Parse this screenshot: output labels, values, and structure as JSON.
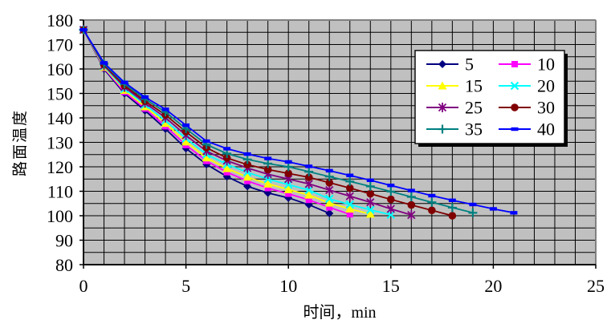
{
  "chart_data": {
    "type": "line",
    "title": "",
    "xlabel": "时间，min",
    "ylabel": "路面温度",
    "xlim": [
      0,
      25
    ],
    "ylim": [
      80,
      180
    ],
    "x_ticks": [
      0,
      5,
      10,
      15,
      20,
      25
    ],
    "y_ticks": [
      80,
      90,
      100,
      110,
      120,
      130,
      140,
      150,
      160,
      170,
      180
    ],
    "grid": {
      "x_step": 1,
      "y_step": 5,
      "color": "#000000",
      "on": true
    },
    "plot_bg": "#C0C0C0",
    "plot_border_color": "#808080",
    "axis_color": "#000000",
    "legend_position": "top-right-inside",
    "legend_columns": 2,
    "x_start": 0,
    "x_step": 1,
    "x_unit": "min",
    "series": [
      {
        "name": "5",
        "color": "#000080",
        "marker": "diamond",
        "values": [
          176,
          160,
          150,
          143,
          135.5,
          127.5,
          121,
          116,
          112,
          109.3,
          107.3,
          104.5,
          101
        ]
      },
      {
        "name": "10",
        "color": "#FF00FF",
        "marker": "square",
        "values": [
          176,
          160.4,
          150.6,
          143.8,
          136.6,
          128.9,
          122.4,
          117.8,
          114.2,
          111.3,
          109,
          106.5,
          103.4,
          100.6
        ]
      },
      {
        "name": "15",
        "color": "#FFFF00",
        "marker": "triangle",
        "values": [
          176,
          160.7,
          151.3,
          144.6,
          137.8,
          130.2,
          123.7,
          119.3,
          115.8,
          113,
          110.7,
          108.5,
          105.2,
          102.8,
          100.7
        ]
      },
      {
        "name": "20",
        "color": "#00FFFF",
        "marker": "x",
        "values": [
          176,
          161.1,
          151.9,
          145.4,
          138.9,
          131.6,
          125.1,
          121,
          117.7,
          115,
          112.7,
          110.5,
          106.9,
          104.6,
          102.4,
          100.4
        ]
      },
      {
        "name": "25",
        "color": "#800080",
        "marker": "asterisk",
        "values": [
          176,
          161.4,
          152.6,
          146.1,
          140.1,
          132.9,
          126.4,
          122.5,
          119.5,
          117,
          115,
          113,
          110.5,
          108,
          105.5,
          102.8,
          100.3
        ]
      },
      {
        "name": "30",
        "color": "#800000",
        "marker": "circle",
        "values": [
          176,
          161.8,
          153.2,
          146.9,
          141.2,
          134.3,
          127.8,
          123.6,
          120.9,
          118.9,
          117.3,
          115.7,
          113.5,
          111.3,
          109,
          106.7,
          104.4,
          102.2,
          100
        ]
      },
      {
        "name": "35",
        "color": "#008080",
        "marker": "plus",
        "values": [
          176,
          162.1,
          153.9,
          147.7,
          142.4,
          135.6,
          129.1,
          125.4,
          123,
          121.3,
          120,
          118,
          116,
          114,
          112,
          109.9,
          107.7,
          105.5,
          103.3,
          101.2
        ]
      },
      {
        "name": "40",
        "color": "#0000FF",
        "marker": "dash",
        "values": [
          176,
          162.5,
          154.5,
          148.5,
          143.5,
          137,
          130.5,
          127.4,
          125.2,
          123.4,
          122,
          120.2,
          118.4,
          116.5,
          114.5,
          112.4,
          110.3,
          108.2,
          106.3,
          104.6,
          102.8,
          101.2
        ]
      }
    ]
  }
}
